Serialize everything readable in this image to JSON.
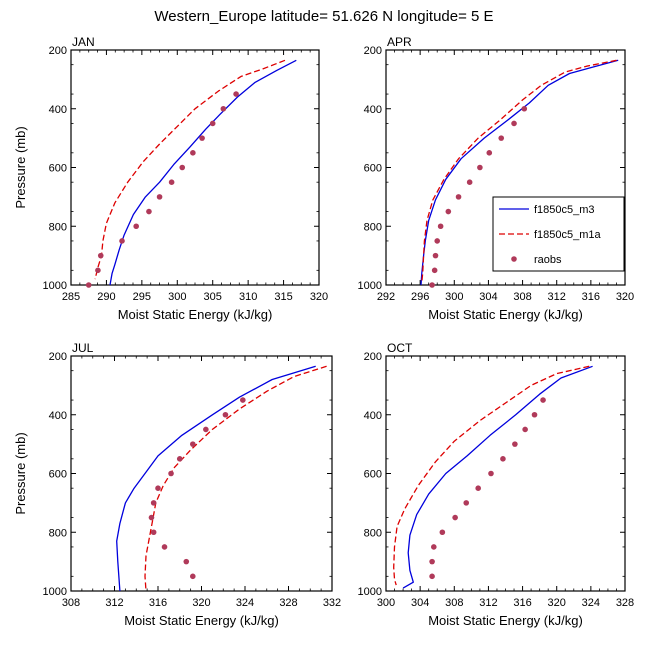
{
  "title": "Western_Europe  latitude= 51.626 N longitude= 5 E",
  "legend": [
    {
      "name": "f1850c5_m3",
      "color": "#0000dd",
      "style": "solid"
    },
    {
      "name": "f1850c5_m1a",
      "color": "#dd0000",
      "style": "dashed"
    },
    {
      "name": "raobs",
      "color": "#b03a5a",
      "style": "marker"
    }
  ],
  "chart_data": [
    {
      "type": "line",
      "panel_label": "JAN",
      "xlabel": "Moist Static Energy (kJ/kg)",
      "ylabel": "Pressure (mb)",
      "xlim": [
        285,
        320
      ],
      "ylim": [
        1000,
        200
      ],
      "xticks": [
        285,
        290,
        295,
        300,
        305,
        310,
        315,
        320
      ],
      "yticks": [
        200,
        400,
        600,
        800,
        1000
      ],
      "series": [
        {
          "name": "f1850c5_m3",
          "points": [
            [
              316.8,
              235
            ],
            [
              314,
              270
            ],
            [
              311,
              310
            ],
            [
              308.5,
              360
            ],
            [
              306,
              420
            ],
            [
              304,
              470
            ],
            [
              301.8,
              530
            ],
            [
              299.5,
              590
            ],
            [
              297.5,
              650
            ],
            [
              295.5,
              700
            ],
            [
              293.8,
              760
            ],
            [
              292.5,
              830
            ],
            [
              291.8,
              880
            ],
            [
              291.2,
              930
            ],
            [
              290.8,
              960
            ],
            [
              290.5,
              1000
            ]
          ]
        },
        {
          "name": "f1850c5_m1a",
          "points": [
            [
              315.2,
              235
            ],
            [
              312,
              265
            ],
            [
              309,
              290
            ],
            [
              305.8,
              340
            ],
            [
              302.5,
              400
            ],
            [
              300,
              460
            ],
            [
              297.5,
              520
            ],
            [
              295.2,
              580
            ],
            [
              293,
              650
            ],
            [
              291.2,
              720
            ],
            [
              290,
              790
            ],
            [
              289.5,
              850
            ],
            [
              289.3,
              900
            ],
            [
              288.8,
              940
            ],
            [
              288.4,
              980
            ]
          ]
        }
      ],
      "markers": {
        "name": "raobs",
        "points": [
          [
            308.3,
            350
          ],
          [
            306.5,
            400
          ],
          [
            305,
            450
          ],
          [
            303.5,
            500
          ],
          [
            302.2,
            550
          ],
          [
            300.7,
            600
          ],
          [
            299.2,
            650
          ],
          [
            297.5,
            700
          ],
          [
            296,
            750
          ],
          [
            294.2,
            800
          ],
          [
            292.2,
            850
          ],
          [
            289.2,
            900
          ],
          [
            288.8,
            950
          ],
          [
            287.5,
            1000
          ]
        ]
      }
    },
    {
      "type": "line",
      "panel_label": "APR",
      "xlabel": "Moist Static Energy (kJ/kg)",
      "ylabel": "",
      "xlim": [
        292,
        320
      ],
      "ylim": [
        1000,
        200
      ],
      "xticks": [
        292,
        296,
        300,
        304,
        308,
        312,
        316,
        320
      ],
      "yticks": [
        200,
        400,
        600,
        800,
        1000
      ],
      "series": [
        {
          "name": "f1850c5_m3",
          "points": [
            [
              319.2,
              235
            ],
            [
              316,
              260
            ],
            [
              313.5,
              280
            ],
            [
              311,
              320
            ],
            [
              308.8,
              380
            ],
            [
              306.2,
              440
            ],
            [
              303.5,
              500
            ],
            [
              300.8,
              570
            ],
            [
              299,
              640
            ],
            [
              297.8,
              710
            ],
            [
              297,
              780
            ],
            [
              296.6,
              850
            ],
            [
              296.4,
              900
            ],
            [
              296.2,
              960
            ],
            [
              296.1,
              1000
            ]
          ]
        },
        {
          "name": "f1850c5_m1a",
          "points": [
            [
              319,
              235
            ],
            [
              315.5,
              255
            ],
            [
              313,
              275
            ],
            [
              310.2,
              320
            ],
            [
              308,
              370
            ],
            [
              305.3,
              440
            ],
            [
              302.8,
              500
            ],
            [
              300.5,
              570
            ],
            [
              298.8,
              640
            ],
            [
              297.5,
              710
            ],
            [
              296.8,
              780
            ],
            [
              296.5,
              850
            ],
            [
              296.4,
              900
            ],
            [
              296.3,
              960
            ],
            [
              296.2,
              990
            ]
          ]
        }
      ],
      "markers": {
        "name": "raobs",
        "points": [
          [
            308.2,
            400
          ],
          [
            307,
            450
          ],
          [
            305.5,
            500
          ],
          [
            304.1,
            550
          ],
          [
            303,
            600
          ],
          [
            301.8,
            650
          ],
          [
            300.5,
            700
          ],
          [
            299.3,
            750
          ],
          [
            298.4,
            800
          ],
          [
            298,
            850
          ],
          [
            297.8,
            900
          ],
          [
            297.7,
            950
          ],
          [
            297.4,
            1000
          ]
        ]
      }
    },
    {
      "type": "line",
      "panel_label": "JUL",
      "xlabel": "Moist Static Energy (kJ/kg)",
      "ylabel": "Pressure (mb)",
      "xlim": [
        308,
        332
      ],
      "ylim": [
        1000,
        200
      ],
      "xticks": [
        308,
        312,
        316,
        320,
        324,
        328,
        332
      ],
      "yticks": [
        200,
        400,
        600,
        800,
        1000
      ],
      "series": [
        {
          "name": "f1850c5_m3",
          "points": [
            [
              330.5,
              235
            ],
            [
              326.5,
              280
            ],
            [
              323.5,
              340
            ],
            [
              321,
              400
            ],
            [
              318.2,
              470
            ],
            [
              316,
              540
            ],
            [
              314.8,
              600
            ],
            [
              313.8,
              650
            ],
            [
              313,
              700
            ],
            [
              312.5,
              770
            ],
            [
              312.2,
              830
            ],
            [
              312.3,
              900
            ],
            [
              312.5,
              1000
            ]
          ]
        },
        {
          "name": "f1850c5_m1a",
          "points": [
            [
              331.5,
              235
            ],
            [
              328.5,
              270
            ],
            [
              326,
              320
            ],
            [
              323.5,
              380
            ],
            [
              321,
              450
            ],
            [
              319,
              520
            ],
            [
              317.5,
              580
            ],
            [
              316.5,
              640
            ],
            [
              315.8,
              700
            ],
            [
              315.5,
              760
            ],
            [
              315.2,
              820
            ],
            [
              314.9,
              880
            ],
            [
              314.8,
              950
            ],
            [
              314.9,
              1000
            ]
          ]
        }
      ],
      "markers": {
        "name": "raobs",
        "points": [
          [
            323.8,
            350
          ],
          [
            322.2,
            400
          ],
          [
            320.4,
            450
          ],
          [
            319.2,
            500
          ],
          [
            318,
            550
          ],
          [
            317.2,
            600
          ],
          [
            316,
            650
          ],
          [
            315.6,
            700
          ],
          [
            315.4,
            750
          ],
          [
            315.6,
            800
          ],
          [
            316.6,
            850
          ],
          [
            318.6,
            900
          ],
          [
            319.2,
            950
          ]
        ]
      }
    },
    {
      "type": "line",
      "panel_label": "OCT",
      "xlabel": "Moist Static Energy (kJ/kg)",
      "ylabel": "",
      "xlim": [
        300,
        328
      ],
      "ylim": [
        1000,
        200
      ],
      "xticks": [
        300,
        304,
        308,
        312,
        316,
        320,
        324,
        328
      ],
      "yticks": [
        200,
        400,
        600,
        800,
        1000
      ],
      "series": [
        {
          "name": "f1850c5_m3",
          "points": [
            [
              324.2,
              235
            ],
            [
              320.5,
              275
            ],
            [
              318,
              330
            ],
            [
              315.2,
              400
            ],
            [
              312.2,
              470
            ],
            [
              309.5,
              540
            ],
            [
              307,
              600
            ],
            [
              305,
              670
            ],
            [
              303.6,
              740
            ],
            [
              302.8,
              810
            ],
            [
              302.6,
              870
            ],
            [
              302.8,
              930
            ],
            [
              303.2,
              970
            ],
            [
              302,
              990
            ]
          ]
        },
        {
          "name": "f1850c5_m1a",
          "points": [
            [
              323.8,
              235
            ],
            [
              320,
              260
            ],
            [
              317,
              300
            ],
            [
              314,
              360
            ],
            [
              311,
              420
            ],
            [
              308,
              490
            ],
            [
              305.8,
              560
            ],
            [
              303.8,
              640
            ],
            [
              302.2,
              720
            ],
            [
              301.3,
              780
            ],
            [
              301,
              850
            ],
            [
              300.9,
              920
            ],
            [
              301,
              960
            ],
            [
              301.2,
              980
            ]
          ]
        }
      ],
      "markers": {
        "name": "raobs",
        "points": [
          [
            318.4,
            350
          ],
          [
            317.4,
            400
          ],
          [
            316.3,
            450
          ],
          [
            315.1,
            500
          ],
          [
            313.7,
            550
          ],
          [
            312.3,
            600
          ],
          [
            310.8,
            650
          ],
          [
            309.4,
            700
          ],
          [
            308.1,
            750
          ],
          [
            306.6,
            800
          ],
          [
            305.6,
            850
          ],
          [
            305.4,
            900
          ],
          [
            305.4,
            950
          ]
        ]
      }
    }
  ]
}
